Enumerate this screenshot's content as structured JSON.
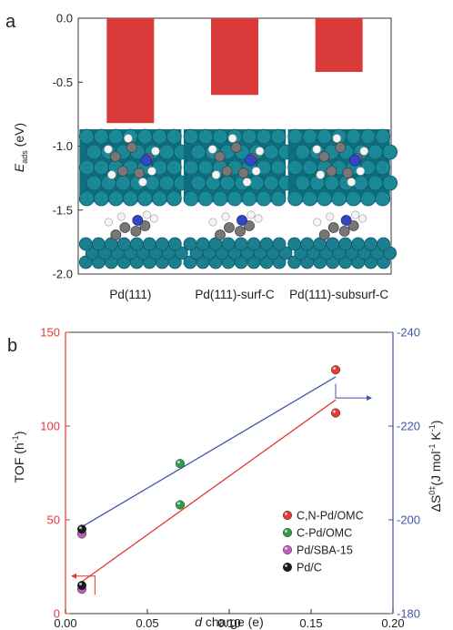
{
  "chart_data": [
    {
      "type": "bar",
      "panel_label": "a",
      "title": "",
      "categories": [
        "Pd(111)",
        "Pd(111)-surf-C",
        "Pd(111)-subsurf-C"
      ],
      "values": [
        -0.82,
        -0.6,
        -0.42
      ],
      "ylabel_main": "E",
      "ylabel_sub": "ads",
      "ylabel_unit": " (eV)",
      "ylim": [
        -2.0,
        0.0
      ],
      "yticks": [
        "0.0",
        "-0.5",
        "-1.0",
        "-1.5",
        "-2.0"
      ],
      "bar_color": "#d93a3a",
      "grid": false
    },
    {
      "type": "scatter",
      "panel_label": "b",
      "xlabel_italic": "d",
      "xlabel_rest": " charge (e)",
      "xlim": [
        0.0,
        0.2
      ],
      "xticks": [
        "0.00",
        "0.05",
        "0.10",
        "0.15",
        "0.20"
      ],
      "ylabel_left_main": "TOF (h",
      "ylabel_left_sup": "-1",
      "ylabel_left_end": ")",
      "ylim_left": [
        0,
        150
      ],
      "yticks_left": [
        "0",
        "50",
        "100",
        "150"
      ],
      "ylabel_right_main": "ΔS",
      "ylabel_right_sup": "0‡",
      "ylabel_right_mid": "(J mol",
      "ylabel_right_sup2": "-1",
      "ylabel_right_mid2": " K",
      "ylabel_right_sup3": "-1",
      "ylabel_right_end": ")",
      "ylim_right": [
        -180,
        -240
      ],
      "yticks_right": [
        "-180",
        "-200",
        "-220",
        "-240"
      ],
      "left_color": "#e53935",
      "right_color": "#3f57a8",
      "legend_position": "bottom-right",
      "series": [
        {
          "name": "C,N-Pd/OMC",
          "color": "#e53935",
          "x": 0.165,
          "tof": 107,
          "dS": -232
        },
        {
          "name": "C-Pd/OMC",
          "color": "#2e9b46",
          "x": 0.07,
          "tof": 58,
          "dS": -212
        },
        {
          "name": "Pd/SBA-15",
          "color": "#c05cc0",
          "x": 0.01,
          "tof": 13,
          "dS": -197
        },
        {
          "name": "Pd/C",
          "color": "#1a1a1a",
          "x": 0.01,
          "tof": 15,
          "dS": -198
        }
      ],
      "fit_tof": {
        "x": [
          0.01,
          0.165
        ],
        "y": [
          17,
          114
        ]
      },
      "fit_dS": {
        "x": [
          0.01,
          0.165
        ],
        "y": [
          -198.5,
          -230.5
        ]
      }
    }
  ]
}
